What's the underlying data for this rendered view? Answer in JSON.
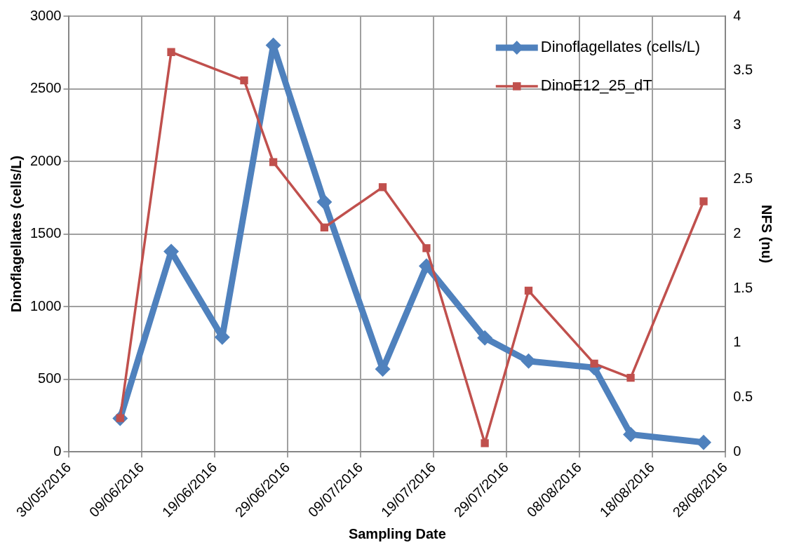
{
  "chart_data": {
    "type": "line",
    "xlabel": "Sampling Date",
    "ylabel": "Dinoflagellates (cells/L)",
    "y2label": "NFS (nu)",
    "xlim": [
      "2016-05-30",
      "2016-08-28"
    ],
    "xticks": [
      {
        "value": "2016-05-30",
        "label": "30/05/2016"
      },
      {
        "value": "2016-06-09",
        "label": "09/06/2016"
      },
      {
        "value": "2016-06-19",
        "label": "19/06/2016"
      },
      {
        "value": "2016-06-29",
        "label": "29/06/2016"
      },
      {
        "value": "2016-07-09",
        "label": "09/07/2016"
      },
      {
        "value": "2016-07-19",
        "label": "19/07/2016"
      },
      {
        "value": "2016-07-29",
        "label": "29/07/2016"
      },
      {
        "value": "2016-08-08",
        "label": "08/08/2016"
      },
      {
        "value": "2016-08-18",
        "label": "18/08/2016"
      },
      {
        "value": "2016-08-28",
        "label": "28/08/2016"
      }
    ],
    "ylim": [
      0,
      3000
    ],
    "yticks": [
      0,
      500,
      1000,
      1500,
      2000,
      2500,
      3000
    ],
    "y2lim": [
      0,
      4
    ],
    "y2ticks": [
      0,
      0.5,
      1,
      1.5,
      2,
      2.5,
      3,
      3.5,
      4
    ],
    "grid": true,
    "legend": "top right",
    "series": [
      {
        "name": "Dinoflagellates (cells/L)",
        "color": "#4f81bd",
        "marker": "diamond",
        "x": [
          "2016-06-06",
          "2016-06-13",
          "2016-06-20",
          "2016-06-27",
          "2016-07-04",
          "2016-07-12",
          "2016-07-18",
          "2016-07-26",
          "2016-08-01",
          "2016-08-10",
          "2016-08-15",
          "2016-08-25"
        ],
        "values": [
          230,
          1380,
          790,
          2800,
          1720,
          570,
          1280,
          785,
          625,
          580,
          120,
          65
        ]
      },
      {
        "name": "DinoE12_25_dT",
        "color": "#c0504d",
        "marker": "square",
        "axis": "y2",
        "x": [
          "2016-06-06",
          "2016-06-13",
          "2016-06-23",
          "2016-06-27",
          "2016-07-04",
          "2016-07-12",
          "2016-07-18",
          "2016-07-26",
          "2016-08-01",
          "2016-08-10",
          "2016-08-15",
          "2016-08-25"
        ],
        "values": [
          0.31,
          3.67,
          3.41,
          2.66,
          2.06,
          2.43,
          1.87,
          0.08,
          1.48,
          0.81,
          0.68,
          2.3
        ]
      }
    ]
  }
}
